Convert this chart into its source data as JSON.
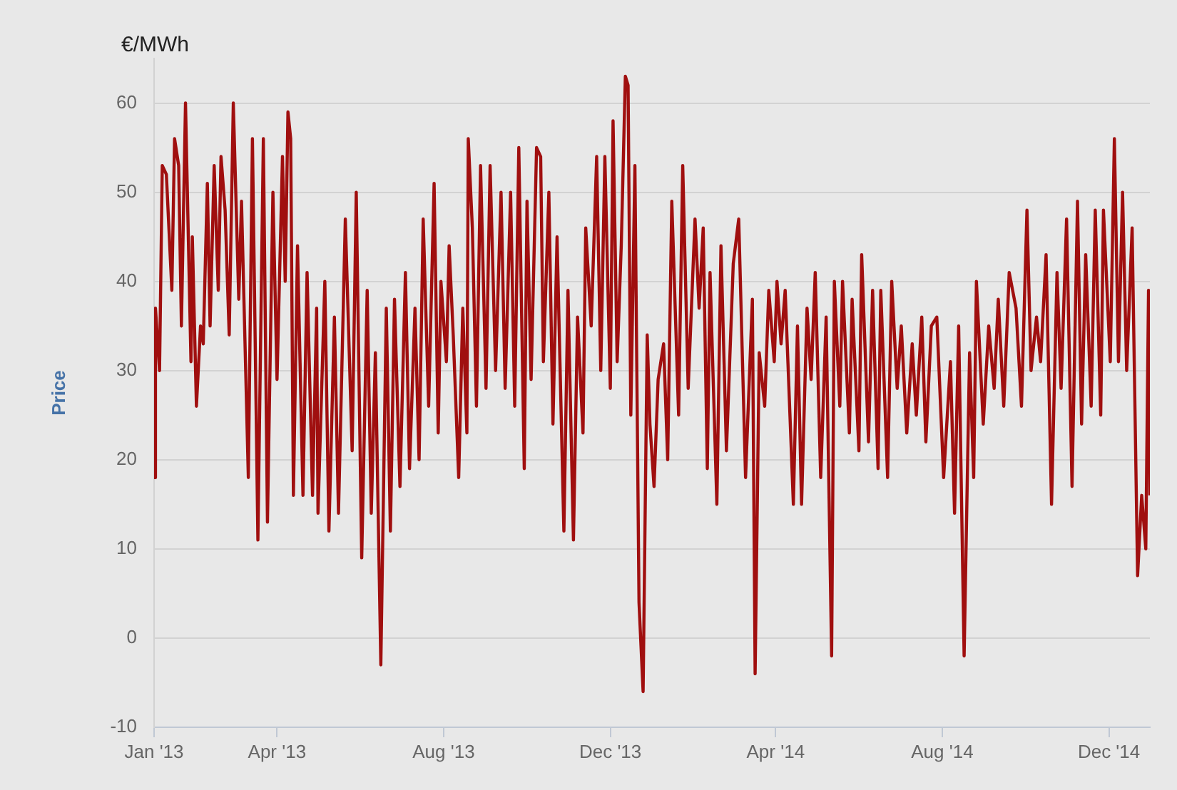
{
  "chart_data": {
    "type": "line",
    "ylabel": "Price",
    "annotations": [
      "€/MWh"
    ],
    "color": "#a00f0f",
    "grid": "y",
    "xlim": [
      "2013-01-01",
      "2014-12-31"
    ],
    "ylim": [
      -10,
      65
    ],
    "xticks": [
      {
        "value": "2013-01-01",
        "label": "Jan '13"
      },
      {
        "value": "2013-04-01",
        "label": "Apr '13"
      },
      {
        "value": "2013-08-01",
        "label": "Aug '13"
      },
      {
        "value": "2013-12-01",
        "label": "Dec '13"
      },
      {
        "value": "2014-04-01",
        "label": "Apr '14"
      },
      {
        "value": "2014-08-01",
        "label": "Aug '14"
      },
      {
        "value": "2014-12-01",
        "label": "Dec '14"
      }
    ],
    "yticks": [
      -10,
      0,
      10,
      20,
      30,
      40,
      50,
      60
    ],
    "x": [
      "2013-01-01",
      "2013-01-02",
      "2013-01-05",
      "2013-01-07",
      "2013-01-10",
      "2013-01-14",
      "2013-01-16",
      "2013-01-19",
      "2013-01-21",
      "2013-01-24",
      "2013-01-28",
      "2013-01-29",
      "2013-02-01",
      "2013-02-04",
      "2013-02-06",
      "2013-02-09",
      "2013-02-11",
      "2013-02-14",
      "2013-02-17",
      "2013-02-19",
      "2013-02-22",
      "2013-02-25",
      "2013-02-28",
      "2013-03-04",
      "2013-03-06",
      "2013-03-11",
      "2013-03-14",
      "2013-03-18",
      "2013-03-22",
      "2013-03-25",
      "2013-03-29",
      "2013-04-01",
      "2013-04-05",
      "2013-04-07",
      "2013-04-09",
      "2013-04-11",
      "2013-04-13",
      "2013-04-16",
      "2013-04-20",
      "2013-04-23",
      "2013-04-27",
      "2013-04-30",
      "2013-05-01",
      "2013-05-06",
      "2013-05-09",
      "2013-05-13",
      "2013-05-16",
      "2013-05-21",
      "2013-05-26",
      "2013-05-29",
      "2013-06-02",
      "2013-06-06",
      "2013-06-09",
      "2013-06-12",
      "2013-06-16",
      "2013-06-20",
      "2013-06-23",
      "2013-06-26",
      "2013-06-30",
      "2013-07-04",
      "2013-07-07",
      "2013-07-11",
      "2013-07-14",
      "2013-07-17",
      "2013-07-21",
      "2013-07-25",
      "2013-07-28",
      "2013-07-30",
      "2013-08-03",
      "2013-08-05",
      "2013-08-08",
      "2013-08-12",
      "2013-08-15",
      "2013-08-18",
      "2013-08-19",
      "2013-08-22",
      "2013-08-25",
      "2013-08-28",
      "2013-09-01",
      "2013-09-04",
      "2013-09-08",
      "2013-09-12",
      "2013-09-15",
      "2013-09-19",
      "2013-09-22",
      "2013-09-25",
      "2013-09-29",
      "2013-10-01",
      "2013-10-04",
      "2013-10-08",
      "2013-10-11",
      "2013-10-13",
      "2013-10-17",
      "2013-10-20",
      "2013-10-23",
      "2013-10-28",
      "2013-10-31",
      "2013-11-04",
      "2013-11-07",
      "2013-11-11",
      "2013-11-13",
      "2013-11-17",
      "2013-11-21",
      "2013-11-24",
      "2013-11-27",
      "2013-12-01",
      "2013-12-03",
      "2013-12-06",
      "2013-12-09",
      "2013-12-12",
      "2013-12-14",
      "2013-12-16",
      "2013-12-19",
      "2013-12-22",
      "2013-12-25",
      "2013-12-28",
      "2013-12-30",
      "2014-01-02",
      "2014-01-05",
      "2014-01-09",
      "2014-01-12",
      "2014-01-15",
      "2014-01-20",
      "2014-01-23",
      "2014-01-27",
      "2014-02-01",
      "2014-02-04",
      "2014-02-07",
      "2014-02-10",
      "2014-02-12",
      "2014-02-17",
      "2014-02-20",
      "2014-02-24",
      "2014-03-01",
      "2014-03-05",
      "2014-03-10",
      "2014-03-15",
      "2014-03-17",
      "2014-03-20",
      "2014-03-24",
      "2014-03-27",
      "2014-03-31",
      "2014-04-02",
      "2014-04-05",
      "2014-04-08",
      "2014-04-14",
      "2014-04-17",
      "2014-04-20",
      "2014-04-24",
      "2014-04-27",
      "2014-04-30",
      "2014-05-04",
      "2014-05-08",
      "2014-05-12",
      "2014-05-14",
      "2014-05-18",
      "2014-05-20",
      "2014-05-25",
      "2014-05-27",
      "2014-06-01",
      "2014-06-03",
      "2014-06-08",
      "2014-06-11",
      "2014-06-15",
      "2014-06-17",
      "2014-06-22",
      "2014-06-25",
      "2014-06-29",
      "2014-07-02",
      "2014-07-06",
      "2014-07-10",
      "2014-07-13",
      "2014-07-17",
      "2014-07-20",
      "2014-07-24",
      "2014-07-28",
      "2014-08-02",
      "2014-08-07",
      "2014-08-10",
      "2014-08-13",
      "2014-08-17",
      "2014-08-21",
      "2014-08-24",
      "2014-08-26",
      "2014-08-31",
      "2014-09-04",
      "2014-09-08",
      "2014-09-11",
      "2014-09-15",
      "2014-09-19",
      "2014-09-24",
      "2014-09-28",
      "2014-10-02",
      "2014-10-05",
      "2014-10-09",
      "2014-10-12",
      "2014-10-16",
      "2014-10-20",
      "2014-10-24",
      "2014-10-27",
      "2014-10-31",
      "2014-11-04",
      "2014-11-08",
      "2014-11-11",
      "2014-11-14",
      "2014-11-18",
      "2014-11-21",
      "2014-11-25",
      "2014-11-27",
      "2014-12-02",
      "2014-12-05",
      "2014-12-08",
      "2014-12-11",
      "2014-12-14",
      "2014-12-18",
      "2014-12-22",
      "2014-12-25",
      "2014-12-28",
      "2014-12-30",
      "2014-12-31"
    ],
    "values": [
      18,
      37,
      30,
      53,
      52,
      39,
      56,
      53,
      35,
      60,
      31,
      45,
      26,
      35,
      33,
      51,
      35,
      53,
      39,
      54,
      48,
      34,
      60,
      38,
      49,
      18,
      56,
      11,
      56,
      13,
      50,
      29,
      54,
      40,
      59,
      56,
      16,
      44,
      16,
      41,
      16,
      37,
      14,
      40,
      12,
      36,
      14,
      47,
      21,
      50,
      9,
      39,
      14,
      32,
      -3,
      37,
      12,
      38,
      17,
      41,
      19,
      37,
      20,
      47,
      26,
      51,
      23,
      40,
      31,
      44,
      34,
      18,
      37,
      23,
      56,
      46,
      26,
      53,
      28,
      53,
      30,
      50,
      28,
      50,
      26,
      55,
      19,
      49,
      29,
      55,
      54,
      31,
      50,
      24,
      45,
      12,
      39,
      11,
      36,
      23,
      46,
      35,
      54,
      30,
      54,
      28,
      58,
      31,
      44,
      63,
      62,
      25,
      53,
      4,
      -6,
      34,
      24,
      17,
      29,
      33,
      20,
      49,
      25,
      53,
      28,
      47,
      37,
      46,
      19,
      41,
      15,
      44,
      21,
      42,
      47,
      18,
      38,
      -4,
      32,
      26,
      39,
      31,
      40,
      33,
      39,
      15,
      35,
      15,
      37,
      29,
      41,
      18,
      36,
      -2,
      40,
      26,
      40,
      23,
      38,
      21,
      43,
      22,
      39,
      19,
      39,
      18,
      40,
      28,
      35,
      23,
      33,
      25,
      36,
      22,
      35,
      36,
      18,
      31,
      14,
      35,
      -2,
      32,
      18,
      40,
      24,
      35,
      28,
      38,
      26,
      41,
      37,
      26,
      48,
      30,
      36,
      31,
      43,
      15,
      41,
      28,
      47,
      17,
      49,
      24,
      43,
      26,
      48,
      25,
      48,
      31,
      56,
      31,
      50,
      30,
      46,
      7,
      16,
      10,
      39,
      16
    ]
  }
}
